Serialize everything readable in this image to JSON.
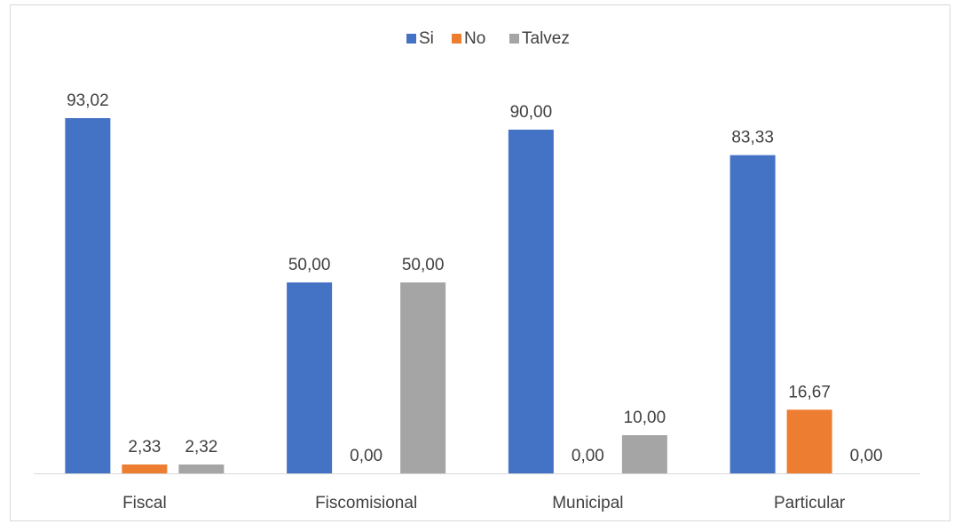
{
  "chart_data": {
    "type": "bar",
    "categories": [
      "Fiscal",
      "Fiscomisional",
      "Municipal",
      "Particular"
    ],
    "series": [
      {
        "name": "Si",
        "color": "#4472c4",
        "values": [
          93.02,
          50.0,
          90.0,
          83.33
        ],
        "labels": [
          "93,02",
          "50,00",
          "90,00",
          "83,33"
        ]
      },
      {
        "name": "No",
        "color": "#ed7d31",
        "values": [
          2.33,
          0.0,
          0.0,
          16.67
        ],
        "labels": [
          "2,33",
          "0,00",
          "0,00",
          "16,67"
        ]
      },
      {
        "name": "Talvez",
        "color": "#a5a5a5",
        "values": [
          2.32,
          50.0,
          10.0,
          0.0
        ],
        "labels": [
          "2,32",
          "50,00",
          "10,00",
          "0,00"
        ]
      }
    ],
    "ylim": [
      0,
      100
    ],
    "grid": false,
    "legend_position": "top-center"
  }
}
